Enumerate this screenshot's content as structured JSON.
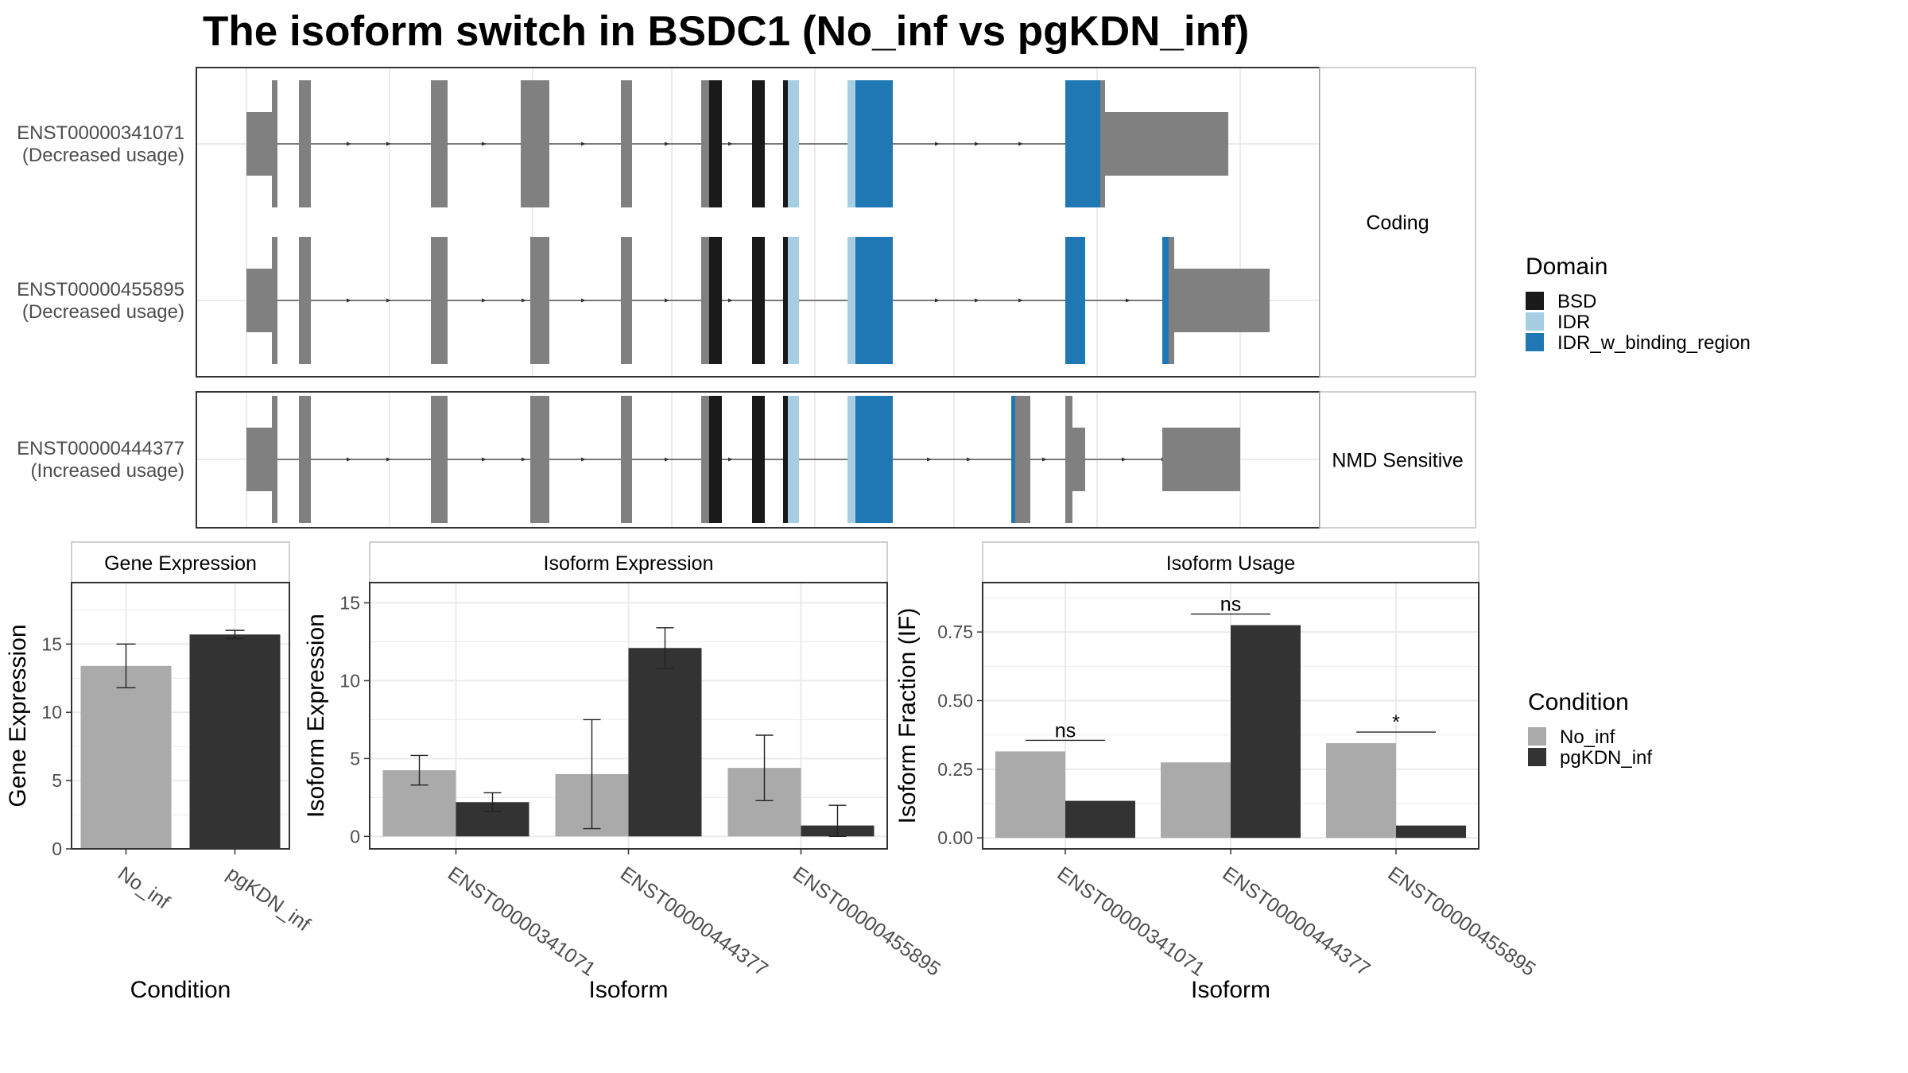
{
  "title": "The isoform switch in BSDC1 (No_inf vs pgKDN_inf)",
  "colors": {
    "exon": "#808080",
    "BSD": "#1a1a1a",
    "IDR": "#a6cee3",
    "IDR_w_binding_region": "#1f78b4",
    "No_inf": "#aaaaaa",
    "pgKDN_inf": "#333333",
    "grid": "#ebebeb",
    "strip": "#f2f2f2"
  },
  "transcripts": {
    "strips": {
      "coding": "Coding",
      "nmd": "NMD Sensitive"
    },
    "tracks": [
      {
        "id": "ENST00000341071",
        "note": "(Decreased usage)",
        "group": "Coding"
      },
      {
        "id": "ENST00000455895",
        "note": "(Decreased usage)",
        "group": "Coding"
      },
      {
        "id": "ENST00000444377",
        "note": "(Increased usage)",
        "group": "NMD Sensitive"
      }
    ]
  },
  "legend_domain": {
    "title": "Domain",
    "items": [
      "BSD",
      "IDR",
      "IDR_w_binding_region"
    ]
  },
  "legend_condition": {
    "title": "Condition",
    "items": [
      "No_inf",
      "pgKDN_inf"
    ]
  },
  "chart_data": [
    {
      "type": "bar",
      "title": "Gene Expression",
      "xlabel": "Condition",
      "ylabel": "Gene Expression",
      "categories": [
        "No_inf",
        "pgKDN_inf"
      ],
      "values": [
        13.4,
        15.7
      ],
      "error": [
        [
          11.8,
          15.0
        ],
        [
          15.4,
          16.0
        ]
      ],
      "ylim": [
        0,
        19.5
      ],
      "yticks": [
        0,
        5,
        10,
        15
      ]
    },
    {
      "type": "bar",
      "title": "Isoform Expression",
      "xlabel": "Isoform",
      "ylabel": "Isoform Expression",
      "categories": [
        "ENST00000341071",
        "ENST00000444377",
        "ENST00000455895"
      ],
      "series": [
        {
          "name": "No_inf",
          "values": [
            4.25,
            4.0,
            4.4
          ],
          "error": [
            [
              3.3,
              5.2
            ],
            [
              0.5,
              7.5
            ],
            [
              2.3,
              6.5
            ]
          ]
        },
        {
          "name": "pgKDN_inf",
          "values": [
            2.2,
            12.1,
            0.7
          ],
          "error": [
            [
              1.6,
              2.8
            ],
            [
              10.8,
              13.4
            ],
            [
              0.0,
              2.0
            ]
          ]
        }
      ],
      "ylim": [
        -0.8,
        16.3
      ],
      "yticks": [
        0,
        5,
        10,
        15
      ]
    },
    {
      "type": "bar",
      "title": "Isoform Usage",
      "xlabel": "Isoform",
      "ylabel": "Isoform Fraction (IF)",
      "categories": [
        "ENST00000341071",
        "ENST00000444377",
        "ENST00000455895"
      ],
      "series": [
        {
          "name": "No_inf",
          "values": [
            0.315,
            0.275,
            0.345
          ]
        },
        {
          "name": "pgKDN_inf",
          "values": [
            0.135,
            0.775,
            0.045
          ]
        }
      ],
      "significance": [
        "ns",
        "ns",
        "*"
      ],
      "ylim": [
        -0.04,
        0.93
      ],
      "yticks": [
        "0.00",
        "0.25",
        "0.50",
        "0.75"
      ]
    }
  ]
}
